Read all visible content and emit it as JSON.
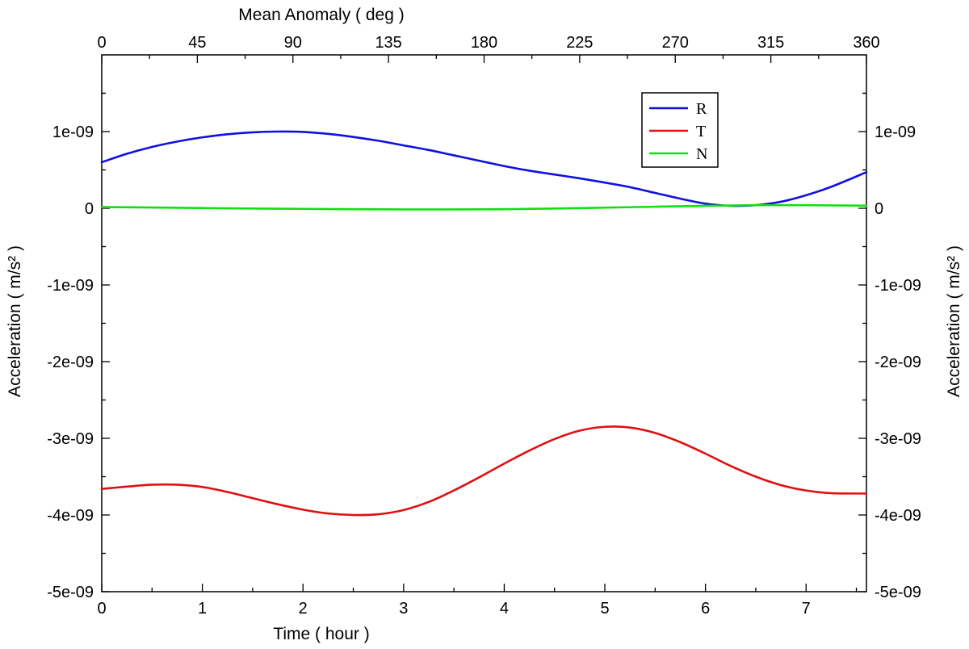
{
  "chart_data": {
    "type": "line",
    "xlabel": "Time ( hour )",
    "x2label": "Mean Anomaly ( deg )",
    "ylabel": "Acceleration ( m/s² )",
    "y2label": "Acceleration ( m/s² )",
    "xlim": [
      0,
      7.6
    ],
    "x2lim": [
      0,
      360
    ],
    "ylim": [
      -5e-09,
      2e-09
    ],
    "x_ticks": [
      0,
      1,
      2,
      3,
      4,
      5,
      6,
      7
    ],
    "x_tick_labels": [
      "0",
      "1",
      "2",
      "3",
      "4",
      "5",
      "6",
      "7"
    ],
    "x2_ticks": [
      0,
      45,
      90,
      135,
      180,
      225,
      270,
      315,
      360
    ],
    "x2_tick_labels": [
      "0",
      "45",
      "90",
      "135",
      "180",
      "225",
      "270",
      "315",
      "360"
    ],
    "y_ticks": [
      1e-09,
      0,
      -1e-09,
      -2e-09,
      -3e-09,
      -4e-09,
      -5e-09
    ],
    "y_tick_labels": [
      "1e-09",
      "0",
      "-1e-09",
      "-2e-09",
      "-3e-09",
      "-4e-09",
      "-5e-09"
    ],
    "grid": false,
    "legend_position": "top-right",
    "series": [
      {
        "name": "R",
        "color": "#1010e0",
        "x": [
          0,
          0.25,
          0.5,
          0.75,
          1.0,
          1.25,
          1.5,
          1.75,
          2.0,
          2.25,
          2.5,
          2.75,
          3.0,
          3.25,
          3.5,
          3.75,
          4.0,
          4.25,
          4.5,
          4.75,
          5.0,
          5.25,
          5.5,
          5.75,
          6.0,
          6.25,
          6.5,
          6.75,
          7.0,
          7.25,
          7.6
        ],
        "y": [
          6e-10,
          7.1e-10,
          8e-10,
          8.7e-10,
          9.25e-10,
          9.65e-10,
          9.9e-10,
          1e-09,
          9.95e-10,
          9.7e-10,
          9.3e-10,
          8.8e-10,
          8.2e-10,
          7.6e-10,
          6.9e-10,
          6.2e-10,
          5.5e-10,
          4.9e-10,
          4.4e-10,
          3.9e-10,
          3.35e-10,
          2.75e-10,
          2e-10,
          1.25e-10,
          6e-11,
          3.2e-11,
          4e-11,
          8.5e-11,
          1.7e-10,
          2.8e-10,
          4.7e-10
        ]
      },
      {
        "name": "T",
        "color": "#e01010",
        "x": [
          0,
          0.25,
          0.5,
          0.75,
          1.0,
          1.25,
          1.5,
          1.75,
          2.0,
          2.25,
          2.5,
          2.75,
          3.0,
          3.25,
          3.5,
          3.75,
          4.0,
          4.25,
          4.5,
          4.75,
          5.0,
          5.25,
          5.5,
          5.75,
          6.0,
          6.25,
          6.5,
          6.75,
          7.0,
          7.25,
          7.6
        ],
        "y": [
          -3.66e-09,
          -3.63e-09,
          -3.605e-09,
          -3.605e-09,
          -3.635e-09,
          -3.7e-09,
          -3.78e-09,
          -3.86e-09,
          -3.93e-09,
          -3.98e-09,
          -4e-09,
          -3.99e-09,
          -3.935e-09,
          -3.83e-09,
          -3.68e-09,
          -3.51e-09,
          -3.33e-09,
          -3.16e-09,
          -3.01e-09,
          -2.9e-09,
          -2.85e-09,
          -2.86e-09,
          -2.93e-09,
          -3.05e-09,
          -3.2e-09,
          -3.36e-09,
          -3.5e-09,
          -3.61e-09,
          -3.68e-09,
          -3.715e-09,
          -3.72e-09
        ]
      },
      {
        "name": "N",
        "color": "#10e010",
        "x": [
          0,
          0.5,
          1.0,
          1.5,
          2.0,
          2.5,
          3.0,
          3.5,
          4.0,
          4.5,
          5.0,
          5.5,
          6.0,
          6.5,
          7.0,
          7.6
        ],
        "y": [
          1.5e-11,
          1e-11,
          3e-12,
          -3e-12,
          -8e-12,
          -1.2e-11,
          -1.5e-11,
          -1.5e-11,
          -1.2e-11,
          -3e-12,
          8e-12,
          2e-11,
          3.2e-11,
          4e-11,
          4e-11,
          3.4e-11
        ]
      }
    ]
  }
}
